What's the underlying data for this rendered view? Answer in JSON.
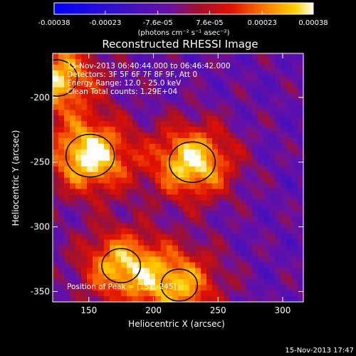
{
  "chart_data": {
    "type": "heatmap",
    "title": "Reconstructed RHESSI Image",
    "xlabel": "Heliocentric X (arcsec)",
    "ylabel": "Heliocentric Y (arcsec)",
    "xlim": [
      122,
      316
    ],
    "ylim": [
      -358,
      -166
    ],
    "xticks": [
      150,
      200,
      250,
      300
    ],
    "yticks": [
      -200,
      -250,
      -300,
      -350
    ],
    "colorbar": {
      "range": [
        -0.00038,
        0.00038
      ],
      "ticks": [
        "-0.00038",
        "-0.00023",
        "-7.6e-05",
        "7.6e-05",
        "0.00023",
        "0.00038"
      ],
      "tick_values": [
        -0.00038,
        -0.00023,
        -7.6e-05,
        7.6e-05,
        0.00023,
        0.00038
      ],
      "label": "(photons cm⁻² s⁻¹ asec⁻²)",
      "colormap": "blue-purple-red-orange-yellow-white"
    },
    "annotations": {
      "time": "15-Nov-2013 06:40:44.000 to 06:46:42.000",
      "detectors": "Detectors: 3F 5F 6F 7F 8F 9F, Att 0",
      "energy": "Energy Range: 12.0 - 25.0 keV",
      "method": "Clean     Total counts: 1.29E+04",
      "peak": "Position of Peak = [151,-245]"
    },
    "sources": [
      {
        "x": 151,
        "y": -245,
        "intensity": 1.0
      },
      {
        "x": 230,
        "y": -250,
        "intensity": 0.95
      },
      {
        "x": 125,
        "y": -185,
        "intensity": 0.85
      },
      {
        "x": 175,
        "y": -330,
        "intensity": 0.8
      },
      {
        "x": 220,
        "y": -345,
        "intensity": 0.75
      }
    ],
    "footer": "15-Nov-2013 17:47"
  }
}
